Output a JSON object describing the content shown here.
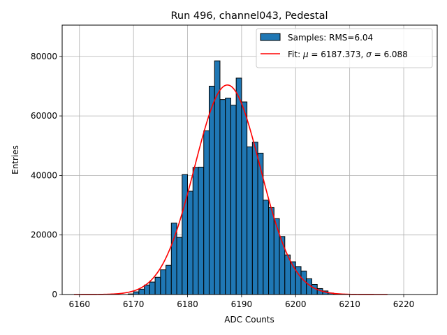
{
  "chart_data": {
    "type": "bar",
    "title": "Run 496, channel043, Pedestal",
    "xlabel": "ADC Counts",
    "ylabel": "Entries",
    "xlim": [
      6156.8,
      6226.2
    ],
    "ylim": [
      0,
      90500
    ],
    "xticks": [
      6160,
      6170,
      6180,
      6190,
      6200,
      6210,
      6220
    ],
    "yticks": [
      0,
      20000,
      40000,
      60000,
      80000
    ],
    "grid": true,
    "legend_position": "top-right",
    "legend": {
      "hist_label": "Samples: RMS=6.04",
      "fit_prefix": "Fit: ",
      "fit_mu_symbol": "μ",
      "fit_mu_value": " = 6187.373, ",
      "fit_sigma_symbol": "σ",
      "fit_sigma_value": " = 6.088"
    },
    "histogram": {
      "bin_start": 6169,
      "bin_width": 1,
      "values": [
        200,
        900,
        1800,
        3200,
        4200,
        5800,
        8300,
        9800,
        24000,
        19200,
        40300,
        34700,
        42700,
        42800,
        55000,
        70000,
        78500,
        65500,
        66000,
        63600,
        72700,
        64700,
        49600,
        51200,
        47500,
        31700,
        29200,
        25500,
        19500,
        13300,
        11000,
        9400,
        7900,
        5300,
        3400,
        2000,
        1200,
        500,
        150
      ]
    },
    "fit": {
      "mu": 6187.373,
      "sigma": 6.088,
      "amplitude": 70400,
      "x_range": [
        6159,
        6217
      ]
    },
    "colors": {
      "bar_fill": "#1f77b4",
      "bar_edge": "#000000",
      "fit_line": "#ff0000",
      "grid": "#b0b0b0"
    }
  }
}
